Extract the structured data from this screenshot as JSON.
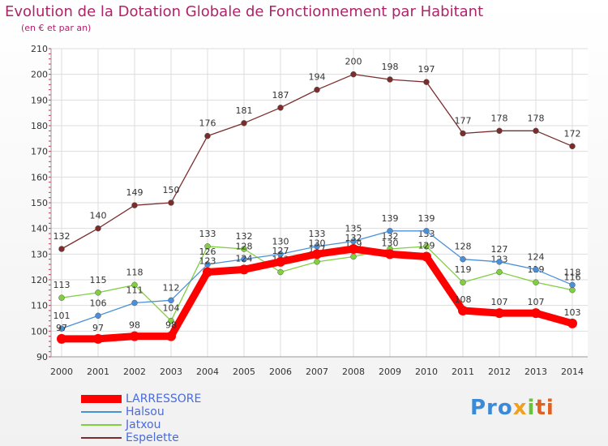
{
  "header": {
    "title": "Evolution de la Dotation Globale de Fonctionnement par Habitant",
    "subtitle": "(en € et par an)"
  },
  "watermark": "Proxiti",
  "chart_data": {
    "type": "line",
    "categories": [
      "2000",
      "2001",
      "2002",
      "2003",
      "2004",
      "2005",
      "2006",
      "2007",
      "2008",
      "2009",
      "2010",
      "2011",
      "2012",
      "2013",
      "2014"
    ],
    "ylim": [
      90,
      210
    ],
    "yticks": [
      90,
      100,
      110,
      120,
      130,
      140,
      150,
      160,
      170,
      180,
      190,
      200,
      210
    ],
    "grid": true,
    "legend_position": "bottom-left",
    "series": [
      {
        "name": "LARRESSORE",
        "color": "#ff0000",
        "values": [
          97,
          97,
          98,
          98,
          123,
          124,
          127,
          130,
          132,
          130,
          129,
          108,
          107,
          107,
          103
        ]
      },
      {
        "name": "Halsou",
        "color": "#4a90d9",
        "values": [
          101,
          106,
          111,
          112,
          126,
          128,
          130,
          133,
          135,
          139,
          139,
          128,
          127,
          124,
          118
        ]
      },
      {
        "name": "Jatxou",
        "color": "#7fcf3f",
        "values": [
          113,
          115,
          118,
          104,
          133,
          132,
          123,
          127,
          129,
          132,
          133,
          119,
          123,
          119,
          116
        ]
      },
      {
        "name": "Espelette",
        "color": "#7b2c2c",
        "values": [
          132,
          140,
          149,
          150,
          176,
          181,
          187,
          194,
          200,
          198,
          197,
          177,
          178,
          178,
          172
        ]
      }
    ]
  }
}
